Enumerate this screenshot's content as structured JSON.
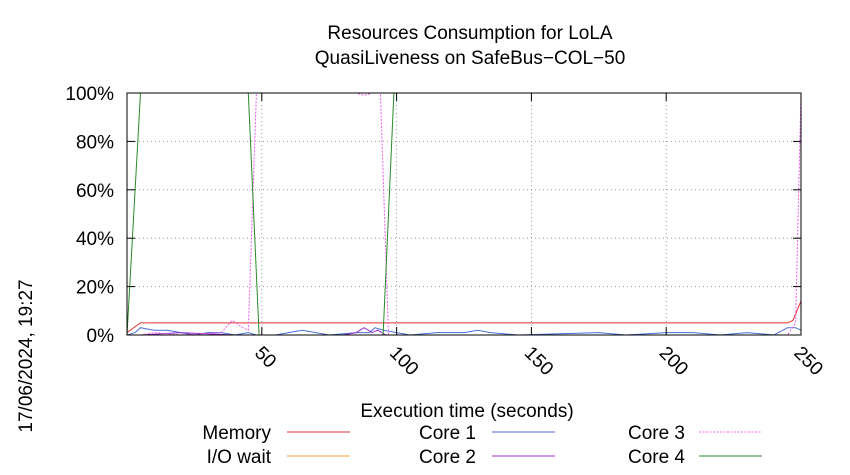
{
  "chart_data": {
    "type": "line",
    "title_lines": [
      "Resources Consumption for LoLA",
      "QuasiLiveness on SafeBus−COL−50"
    ],
    "xlabel": "Execution time (seconds)",
    "side_label": "17/06/2024, 19:27",
    "xlim": [
      0,
      250
    ],
    "ylim": [
      0,
      100
    ],
    "x_ticks": [
      50,
      100,
      150,
      200,
      250
    ],
    "x_tick_labels": [
      "50",
      "100",
      "150",
      "200",
      "250"
    ],
    "y_ticks": [
      0,
      20,
      40,
      60,
      80,
      100
    ],
    "y_tick_labels": [
      "0%",
      "20%",
      "40%",
      "60%",
      "80%",
      "100%"
    ],
    "grid": true,
    "legend_position": "bottom",
    "series": [
      {
        "name": "Memory",
        "color": "#e0302f",
        "dash": false,
        "points": [
          [
            0,
            1
          ],
          [
            5,
            5
          ],
          [
            50,
            5
          ],
          [
            100,
            5
          ],
          [
            150,
            5
          ],
          [
            200,
            5
          ],
          [
            245,
            5
          ],
          [
            247,
            6
          ],
          [
            250,
            14
          ]
        ]
      },
      {
        "name": "I/O wait",
        "color": "#f0a030",
        "dash": false,
        "points": [
          [
            0,
            0
          ],
          [
            250,
            0
          ]
        ]
      },
      {
        "name": "Core 1",
        "color": "#4a6fd8",
        "dash": false,
        "points": [
          [
            0,
            0
          ],
          [
            3,
            1
          ],
          [
            5,
            3
          ],
          [
            10,
            2
          ],
          [
            15,
            2
          ],
          [
            20,
            1
          ],
          [
            25,
            0
          ],
          [
            30,
            1
          ],
          [
            35,
            1
          ],
          [
            40,
            0
          ],
          [
            45,
            1
          ],
          [
            48,
            0
          ],
          [
            55,
            0
          ],
          [
            60,
            1
          ],
          [
            65,
            2
          ],
          [
            70,
            1
          ],
          [
            75,
            0
          ],
          [
            85,
            1
          ],
          [
            90,
            1
          ],
          [
            92,
            3
          ],
          [
            95,
            2
          ],
          [
            100,
            1
          ],
          [
            105,
            0
          ],
          [
            115,
            1
          ],
          [
            125,
            1
          ],
          [
            130,
            2
          ],
          [
            135,
            1
          ],
          [
            145,
            0
          ],
          [
            175,
            1
          ],
          [
            185,
            0
          ],
          [
            200,
            1
          ],
          [
            210,
            1
          ],
          [
            220,
            0
          ],
          [
            230,
            1
          ],
          [
            240,
            0
          ],
          [
            245,
            3
          ],
          [
            248,
            3
          ],
          [
            250,
            2
          ]
        ]
      },
      {
        "name": "Core 2",
        "color": "#9b30d0",
        "dash": false,
        "points": [
          [
            0,
            0
          ],
          [
            5,
            0
          ],
          [
            20,
            1
          ],
          [
            40,
            0
          ],
          [
            50,
            0
          ],
          [
            80,
            0
          ],
          [
            85,
            1
          ],
          [
            88,
            3
          ],
          [
            91,
            1
          ],
          [
            93,
            2
          ],
          [
            96,
            0
          ],
          [
            100,
            0
          ],
          [
            250,
            0
          ]
        ]
      },
      {
        "name": "Core 3",
        "color": "#f05cf0",
        "dash": true,
        "points": [
          [
            0,
            0
          ],
          [
            5,
            0
          ],
          [
            10,
            1
          ],
          [
            20,
            0
          ],
          [
            35,
            1
          ],
          [
            39,
            6
          ],
          [
            43,
            3
          ],
          [
            45,
            2
          ],
          [
            48,
            100
          ],
          [
            55,
            100
          ],
          [
            85,
            100
          ],
          [
            88,
            99
          ],
          [
            91,
            100
          ],
          [
            94,
            100
          ],
          [
            97,
            0
          ],
          [
            100,
            0
          ],
          [
            150,
            0
          ],
          [
            200,
            0
          ],
          [
            245,
            0
          ],
          [
            248,
            5
          ],
          [
            250,
            100
          ]
        ]
      },
      {
        "name": "Core 4",
        "color": "#2a8a2a",
        "dash": false,
        "points": [
          [
            0,
            0
          ],
          [
            5,
            100
          ],
          [
            45,
            100
          ],
          [
            49,
            0
          ],
          [
            51,
            0
          ],
          [
            95,
            0
          ],
          [
            99,
            100
          ],
          [
            150,
            100
          ],
          [
            200,
            100
          ],
          [
            250,
            100
          ]
        ]
      }
    ]
  }
}
